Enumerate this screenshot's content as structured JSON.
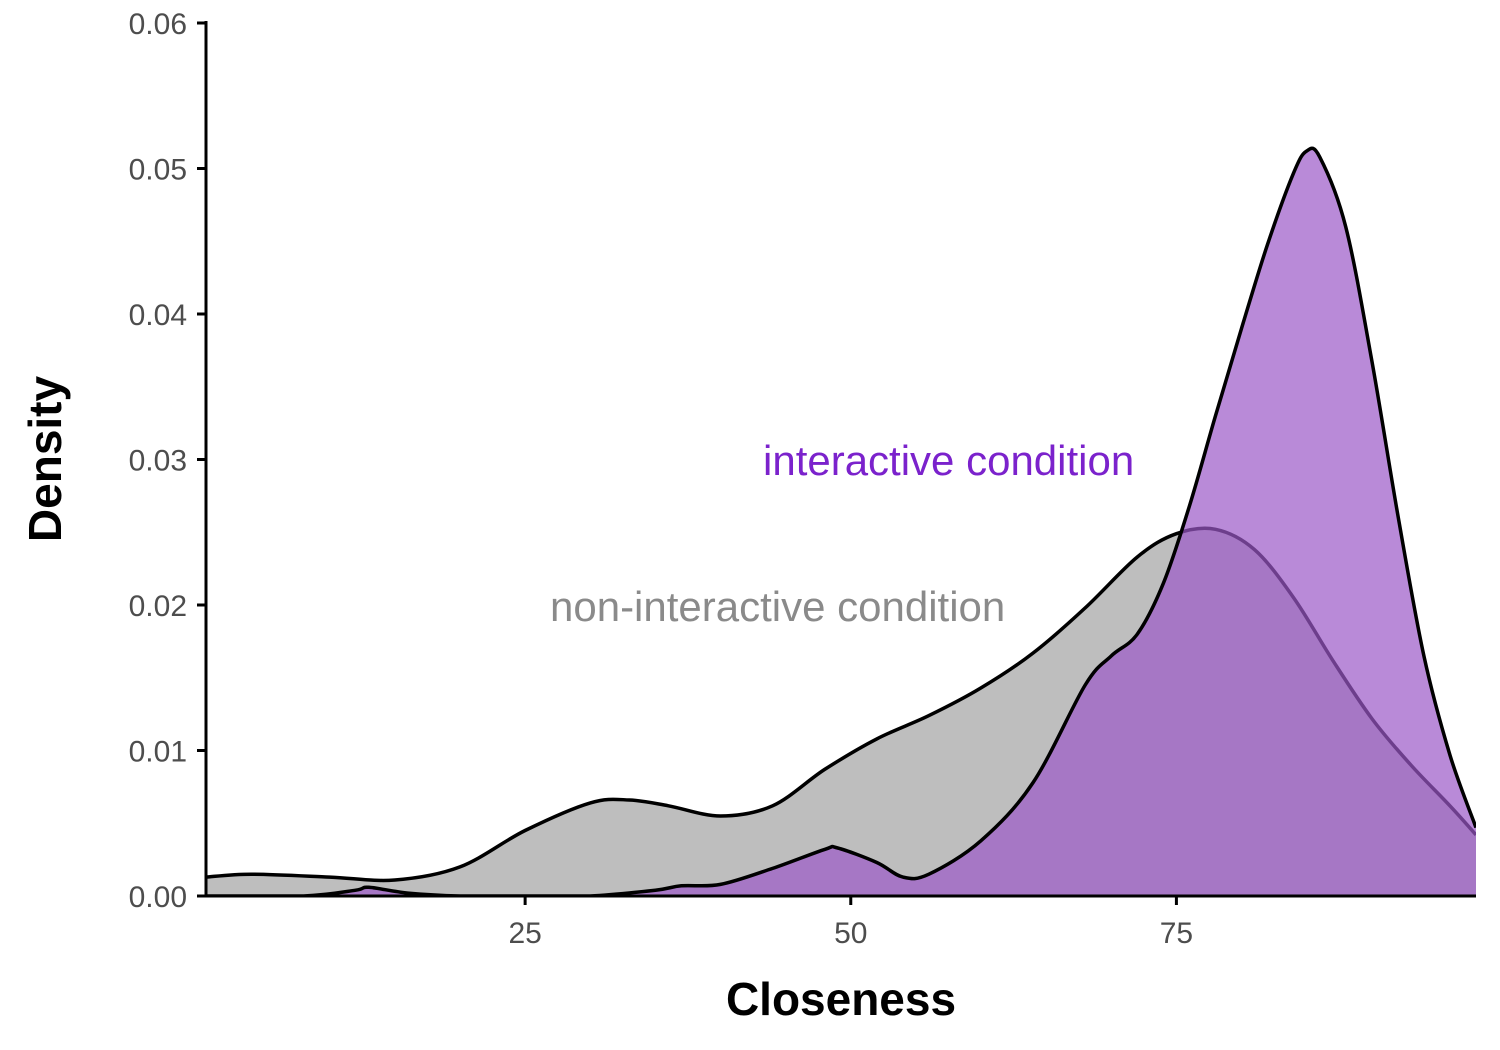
{
  "chart_data": {
    "type": "area",
    "xlabel": "Closeness",
    "ylabel": "Density",
    "xlim": [
      0.5,
      98
    ],
    "ylim": [
      0,
      0.06
    ],
    "x_ticks": [
      25,
      50,
      75
    ],
    "x_tick_labels": [
      "25",
      "50",
      "75"
    ],
    "y_ticks": [
      0,
      0.01,
      0.02,
      0.03,
      0.04,
      0.05,
      0.06
    ],
    "y_tick_labels": [
      "0.00",
      "0.01",
      "0.02",
      "0.03",
      "0.04",
      "0.05",
      "0.06"
    ],
    "grid": false,
    "series": [
      {
        "name": "non-interactive condition",
        "fill": "#bebebe",
        "stroke": "#000000",
        "x": [
          0.5,
          4,
          10,
          15,
          20,
          25,
          30,
          33,
          36,
          40,
          44,
          48,
          52,
          56,
          60,
          64,
          68,
          72,
          75,
          78,
          81,
          84,
          87,
          90,
          93,
          96,
          98
        ],
        "y": [
          0.0013,
          0.0015,
          0.0013,
          0.0011,
          0.002,
          0.0045,
          0.0064,
          0.0066,
          0.0062,
          0.0055,
          0.0062,
          0.0087,
          0.0108,
          0.0124,
          0.0143,
          0.0167,
          0.0198,
          0.0233,
          0.0249,
          0.0252,
          0.0238,
          0.0205,
          0.0162,
          0.0122,
          0.009,
          0.0062,
          0.0042
        ]
      },
      {
        "name": "interactive condition",
        "fill": "#9b59c8",
        "fill_opacity": 0.7,
        "stroke": "#000000",
        "x": [
          0.5,
          8,
          12,
          13,
          16,
          20,
          25,
          30,
          35,
          37,
          40,
          44,
          48,
          49,
          52,
          54,
          56,
          60,
          64,
          68,
          70,
          72,
          74,
          76,
          78,
          80,
          82,
          84,
          85,
          86,
          88,
          90,
          92,
          94,
          96,
          98
        ],
        "y": [
          0.0,
          0.0,
          0.0004,
          0.0006,
          0.0002,
          0.0,
          0.0,
          0.0,
          0.0004,
          0.0007,
          0.0008,
          0.0019,
          0.0032,
          0.0033,
          0.0023,
          0.0013,
          0.0015,
          0.0038,
          0.0078,
          0.0145,
          0.0165,
          0.018,
          0.0215,
          0.0268,
          0.033,
          0.039,
          0.0448,
          0.0497,
          0.0512,
          0.0508,
          0.046,
          0.0368,
          0.0262,
          0.0165,
          0.0097,
          0.0047
        ]
      }
    ],
    "annotations": [
      {
        "text": "interactive condition",
        "color": "#7b22cc"
      },
      {
        "text": "non-interactive condition",
        "color": "#8a8a8a"
      }
    ]
  }
}
